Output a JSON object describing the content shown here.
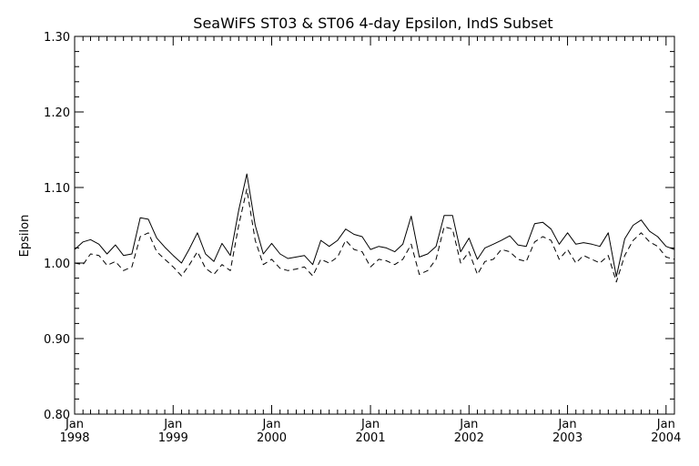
{
  "chart_data": {
    "type": "line",
    "title": "SeaWiFS ST03 & ST06 4-day Epsilon, IndS Subset",
    "xlabel": "",
    "ylabel": "Epsilon",
    "ylim": [
      0.8,
      1.3
    ],
    "xlim": [
      "1998-01-01",
      "2004-02-01"
    ],
    "grid": false,
    "y_ticks": [
      "0.80",
      "0.90",
      "1.00",
      "1.10",
      "1.20",
      "1.30"
    ],
    "x_ticks": [
      {
        "date": "1998-01-01",
        "month": "Jan",
        "year": "1998"
      },
      {
        "date": "1999-01-01",
        "month": "Jan",
        "year": "1999"
      },
      {
        "date": "2000-01-01",
        "month": "Jan",
        "year": "2000"
      },
      {
        "date": "2001-01-01",
        "month": "Jan",
        "year": "2001"
      },
      {
        "date": "2002-01-01",
        "month": "Jan",
        "year": "2002"
      },
      {
        "date": "2003-01-01",
        "month": "Jan",
        "year": "2003"
      },
      {
        "date": "2004-01-01",
        "month": "Jan",
        "year": "2004"
      }
    ],
    "x": [
      "1998-01-01",
      "1998-02-01",
      "1998-03-01",
      "1998-04-01",
      "1998-05-01",
      "1998-06-01",
      "1998-07-01",
      "1998-08-01",
      "1998-09-01",
      "1998-10-01",
      "1998-11-01",
      "1998-12-01",
      "1999-01-01",
      "1999-02-01",
      "1999-03-01",
      "1999-04-01",
      "1999-05-01",
      "1999-06-01",
      "1999-07-01",
      "1999-08-01",
      "1999-09-01",
      "1999-10-01",
      "1999-11-01",
      "1999-12-01",
      "2000-01-01",
      "2000-02-01",
      "2000-03-01",
      "2000-04-01",
      "2000-05-01",
      "2000-06-01",
      "2000-07-01",
      "2000-08-01",
      "2000-09-01",
      "2000-10-01",
      "2000-11-01",
      "2000-12-01",
      "2001-01-01",
      "2001-02-01",
      "2001-03-01",
      "2001-04-01",
      "2001-05-01",
      "2001-06-01",
      "2001-07-01",
      "2001-08-01",
      "2001-09-01",
      "2001-10-01",
      "2001-11-01",
      "2001-12-01",
      "2002-01-01",
      "2002-02-01",
      "2002-03-01",
      "2002-04-01",
      "2002-05-01",
      "2002-06-01",
      "2002-07-01",
      "2002-08-01",
      "2002-09-01",
      "2002-10-01",
      "2002-11-01",
      "2002-12-01",
      "2003-01-01",
      "2003-02-01",
      "2003-03-01",
      "2003-04-01",
      "2003-05-01",
      "2003-06-01",
      "2003-07-01",
      "2003-08-01",
      "2003-09-01",
      "2003-10-01",
      "2003-11-01",
      "2003-12-01",
      "2004-01-01",
      "2004-02-01"
    ],
    "series": [
      {
        "style": "solid",
        "values": [
          1.018,
          1.028,
          1.031,
          1.025,
          1.012,
          1.024,
          1.01,
          1.012,
          1.06,
          1.058,
          1.033,
          1.021,
          1.01,
          1.0,
          1.018,
          1.04,
          1.012,
          1.002,
          1.026,
          1.01,
          1.07,
          1.118,
          1.05,
          1.012,
          1.026,
          1.012,
          1.006,
          1.008,
          1.01,
          0.998,
          1.03,
          1.022,
          1.03,
          1.045,
          1.038,
          1.035,
          1.018,
          1.022,
          1.02,
          1.015,
          1.025,
          1.062,
          1.008,
          1.012,
          1.022,
          1.063,
          1.063,
          1.015,
          1.033,
          1.005,
          1.02,
          1.025,
          1.03,
          1.036,
          1.024,
          1.022,
          1.052,
          1.054,
          1.045,
          1.025,
          1.04,
          1.025,
          1.027,
          1.025,
          1.022,
          1.04,
          0.982,
          1.032,
          1.05,
          1.057,
          1.042,
          1.035,
          1.022,
          1.018
        ]
      },
      {
        "style": "dashed",
        "values": [
          1.0,
          0.998,
          1.012,
          1.01,
          0.997,
          1.002,
          0.99,
          0.995,
          1.035,
          1.04,
          1.015,
          1.005,
          0.995,
          0.983,
          0.997,
          1.015,
          0.993,
          0.985,
          0.998,
          0.99,
          1.05,
          1.098,
          1.03,
          0.998,
          1.005,
          0.993,
          0.99,
          0.992,
          0.995,
          0.983,
          1.005,
          1.0,
          1.008,
          1.03,
          1.018,
          1.015,
          0.995,
          1.005,
          1.003,
          0.998,
          1.005,
          1.025,
          0.985,
          0.99,
          1.005,
          1.048,
          1.045,
          1.0,
          1.015,
          0.985,
          1.002,
          1.005,
          1.018,
          1.015,
          1.005,
          1.002,
          1.028,
          1.035,
          1.03,
          1.005,
          1.018,
          1.0,
          1.01,
          1.005,
          1.0,
          1.01,
          0.975,
          1.01,
          1.03,
          1.04,
          1.028,
          1.022,
          1.008,
          1.005
        ]
      }
    ]
  }
}
